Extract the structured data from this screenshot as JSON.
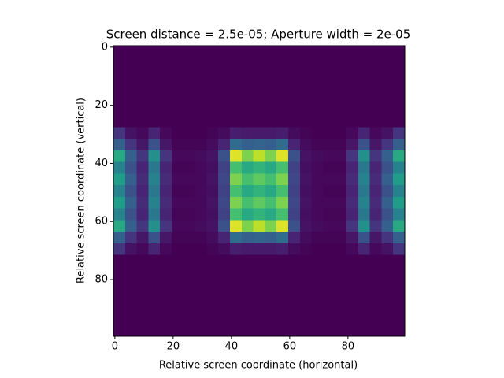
{
  "chart_data": {
    "type": "heatmap",
    "title": "Screen distance = 2.5e-05; Aperture width = 2e-05",
    "x_label": "Relative screen coordinate (horizontal)",
    "y_label": "Relative screen coordinate (vertical)",
    "colormap": "viridis",
    "zlim": [
      0,
      1
    ],
    "xlim": [
      -0.5,
      99.5
    ],
    "ylim": [
      99.5,
      -0.5
    ],
    "xticks": [
      0,
      20,
      40,
      60,
      80
    ],
    "yticks": [
      0,
      20,
      40,
      60,
      80
    ],
    "x": [
      1.5,
      5.5,
      9.5,
      13.5,
      17.5,
      21.5,
      25.5,
      29.5,
      33.5,
      37.5,
      41.5,
      45.5,
      49.5,
      53.5,
      57.5,
      61.5,
      65.5,
      69.5,
      73.5,
      77.5,
      81.5,
      85.5,
      89.5,
      93.5,
      97.5
    ],
    "y": [
      1.5,
      5.5,
      9.5,
      13.5,
      17.5,
      21.5,
      25.5,
      29.5,
      33.5,
      37.5,
      41.5,
      45.5,
      49.5,
      53.5,
      57.5,
      61.5,
      65.5,
      69.5,
      73.5,
      77.5,
      81.5,
      85.5,
      89.5,
      93.5,
      97.5
    ],
    "values": [
      [
        0,
        0,
        0,
        0,
        0,
        0,
        0,
        0,
        0,
        0,
        0,
        0,
        0,
        0,
        0,
        0,
        0,
        0,
        0,
        0,
        0,
        0,
        0,
        0,
        0
      ],
      [
        0,
        0,
        0,
        0,
        0,
        0,
        0,
        0,
        0,
        0,
        0,
        0,
        0,
        0,
        0,
        0,
        0,
        0,
        0,
        0,
        0,
        0,
        0,
        0,
        0
      ],
      [
        0,
        0,
        0,
        0,
        0,
        0,
        0,
        0,
        0,
        0,
        0,
        0,
        0,
        0,
        0,
        0,
        0,
        0,
        0,
        0,
        0,
        0,
        0,
        0,
        0
      ],
      [
        0,
        0,
        0,
        0,
        0,
        0,
        0,
        0,
        0,
        0,
        0,
        0,
        0,
        0,
        0,
        0,
        0,
        0,
        0,
        0,
        0,
        0,
        0,
        0,
        0
      ],
      [
        0,
        0,
        0,
        0,
        0,
        0,
        0,
        0,
        0,
        0,
        0,
        0,
        0,
        0,
        0,
        0,
        0,
        0,
        0,
        0,
        0,
        0,
        0,
        0,
        0
      ],
      [
        0,
        0,
        0,
        0,
        0,
        0,
        0,
        0,
        0,
        0,
        0,
        0,
        0,
        0,
        0,
        0,
        0,
        0,
        0,
        0,
        0,
        0,
        0,
        0,
        0
      ],
      [
        0,
        0,
        0,
        0,
        0,
        0,
        0,
        0,
        0,
        0,
        0,
        0,
        0,
        0,
        0,
        0,
        0,
        0,
        0,
        0,
        0,
        0,
        0,
        0,
        0
      ],
      [
        0.15,
        0.05,
        0.02,
        0.1,
        0.02,
        0,
        0,
        0,
        0.01,
        0.03,
        0.08,
        0.07,
        0.07,
        0.07,
        0.08,
        0.03,
        0.01,
        0,
        0,
        0,
        0.02,
        0.1,
        0.02,
        0.05,
        0.15
      ],
      [
        0.3,
        0.15,
        0.06,
        0.25,
        0.06,
        0.01,
        0.01,
        0.01,
        0.03,
        0.1,
        0.35,
        0.3,
        0.32,
        0.3,
        0.35,
        0.1,
        0.03,
        0.01,
        0.01,
        0.01,
        0.06,
        0.25,
        0.06,
        0.15,
        0.3
      ],
      [
        0.6,
        0.3,
        0.15,
        0.5,
        0.15,
        0.02,
        0.02,
        0.03,
        0.05,
        0.25,
        0.95,
        0.8,
        0.9,
        0.8,
        0.95,
        0.25,
        0.05,
        0.03,
        0.02,
        0.02,
        0.15,
        0.5,
        0.15,
        0.3,
        0.6
      ],
      [
        0.45,
        0.25,
        0.1,
        0.4,
        0.1,
        0.01,
        0.01,
        0.02,
        0.04,
        0.2,
        0.7,
        0.6,
        0.65,
        0.6,
        0.7,
        0.2,
        0.04,
        0.02,
        0.01,
        0.01,
        0.1,
        0.4,
        0.1,
        0.25,
        0.45
      ],
      [
        0.55,
        0.3,
        0.12,
        0.45,
        0.12,
        0.02,
        0.02,
        0.02,
        0.05,
        0.22,
        0.8,
        0.7,
        0.75,
        0.7,
        0.8,
        0.22,
        0.05,
        0.02,
        0.02,
        0.02,
        0.12,
        0.45,
        0.12,
        0.3,
        0.55
      ],
      [
        0.45,
        0.25,
        0.1,
        0.4,
        0.1,
        0.01,
        0.01,
        0.02,
        0.04,
        0.2,
        0.7,
        0.6,
        0.65,
        0.6,
        0.7,
        0.2,
        0.04,
        0.02,
        0.01,
        0.01,
        0.1,
        0.4,
        0.1,
        0.25,
        0.45
      ],
      [
        0.55,
        0.3,
        0.12,
        0.45,
        0.12,
        0.02,
        0.02,
        0.02,
        0.05,
        0.22,
        0.8,
        0.7,
        0.75,
        0.7,
        0.8,
        0.22,
        0.05,
        0.02,
        0.02,
        0.02,
        0.12,
        0.45,
        0.12,
        0.3,
        0.55
      ],
      [
        0.45,
        0.25,
        0.1,
        0.4,
        0.1,
        0.01,
        0.01,
        0.02,
        0.04,
        0.2,
        0.7,
        0.6,
        0.65,
        0.6,
        0.7,
        0.2,
        0.04,
        0.02,
        0.01,
        0.01,
        0.1,
        0.4,
        0.1,
        0.25,
        0.45
      ],
      [
        0.6,
        0.3,
        0.15,
        0.5,
        0.15,
        0.02,
        0.02,
        0.03,
        0.05,
        0.25,
        0.95,
        0.8,
        0.9,
        0.8,
        0.95,
        0.25,
        0.05,
        0.03,
        0.02,
        0.02,
        0.15,
        0.5,
        0.15,
        0.3,
        0.6
      ],
      [
        0.3,
        0.15,
        0.06,
        0.25,
        0.06,
        0.01,
        0.01,
        0.01,
        0.03,
        0.1,
        0.35,
        0.3,
        0.32,
        0.3,
        0.35,
        0.1,
        0.03,
        0.01,
        0.01,
        0.01,
        0.06,
        0.25,
        0.06,
        0.15,
        0.3
      ],
      [
        0.15,
        0.05,
        0.02,
        0.1,
        0.02,
        0,
        0,
        0,
        0.01,
        0.03,
        0.08,
        0.07,
        0.07,
        0.07,
        0.08,
        0.03,
        0.01,
        0,
        0,
        0,
        0.02,
        0.1,
        0.02,
        0.05,
        0.15
      ],
      [
        0,
        0,
        0,
        0,
        0,
        0,
        0,
        0,
        0,
        0,
        0,
        0,
        0,
        0,
        0,
        0,
        0,
        0,
        0,
        0,
        0,
        0,
        0,
        0,
        0
      ],
      [
        0,
        0,
        0,
        0,
        0,
        0,
        0,
        0,
        0,
        0,
        0,
        0,
        0,
        0,
        0,
        0,
        0,
        0,
        0,
        0,
        0,
        0,
        0,
        0,
        0
      ],
      [
        0,
        0,
        0,
        0,
        0,
        0,
        0,
        0,
        0,
        0,
        0,
        0,
        0,
        0,
        0,
        0,
        0,
        0,
        0,
        0,
        0,
        0,
        0,
        0,
        0
      ],
      [
        0,
        0,
        0,
        0,
        0,
        0,
        0,
        0,
        0,
        0,
        0,
        0,
        0,
        0,
        0,
        0,
        0,
        0,
        0,
        0,
        0,
        0,
        0,
        0,
        0
      ],
      [
        0,
        0,
        0,
        0,
        0,
        0,
        0,
        0,
        0,
        0,
        0,
        0,
        0,
        0,
        0,
        0,
        0,
        0,
        0,
        0,
        0,
        0,
        0,
        0,
        0
      ],
      [
        0,
        0,
        0,
        0,
        0,
        0,
        0,
        0,
        0,
        0,
        0,
        0,
        0,
        0,
        0,
        0,
        0,
        0,
        0,
        0,
        0,
        0,
        0,
        0,
        0
      ],
      [
        0,
        0,
        0,
        0,
        0,
        0,
        0,
        0,
        0,
        0,
        0,
        0,
        0,
        0,
        0,
        0,
        0,
        0,
        0,
        0,
        0,
        0,
        0,
        0,
        0
      ]
    ]
  }
}
